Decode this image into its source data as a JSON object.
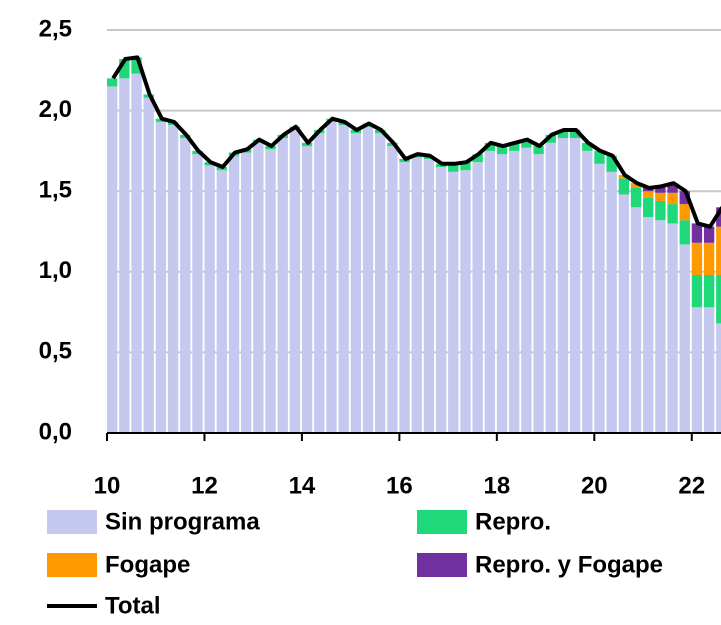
{
  "chart_data": {
    "type": "bar",
    "stacked": true,
    "x": [
      10.0,
      10.25,
      10.5,
      10.75,
      11.0,
      11.25,
      11.5,
      11.75,
      12.0,
      12.25,
      12.5,
      12.75,
      13.0,
      13.25,
      13.5,
      13.75,
      14.0,
      14.25,
      14.5,
      14.75,
      15.0,
      15.25,
      15.5,
      15.75,
      16.0,
      16.25,
      16.5,
      16.75,
      17.0,
      17.25,
      17.5,
      17.75,
      18.0,
      18.25,
      18.5,
      18.75,
      19.0,
      19.25,
      19.5,
      19.75,
      20.0,
      20.25,
      20.5,
      20.75,
      21.0,
      21.25,
      21.5,
      21.75,
      22.0,
      22.25,
      22.5
    ],
    "xlim": [
      10,
      22.6
    ],
    "xticks": [
      10,
      12,
      14,
      16,
      18,
      20,
      22
    ],
    "ylim": [
      0,
      2.5
    ],
    "yticks": [
      {
        "value": 0,
        "label": "0,0"
      },
      {
        "value": 0.5,
        "label": "0,5"
      },
      {
        "value": 1,
        "label": "1,0"
      },
      {
        "value": 1.5,
        "label": "1,5"
      },
      {
        "value": 2,
        "label": "2,0"
      },
      {
        "value": 2.5,
        "label": "2,5"
      }
    ],
    "grid": true,
    "series": [
      {
        "name": "Sin programa",
        "color": "#c5c8ef",
        "values": [
          2.15,
          2.2,
          2.23,
          2.08,
          1.93,
          1.91,
          1.83,
          1.73,
          1.66,
          1.63,
          1.72,
          1.74,
          1.8,
          1.76,
          1.83,
          1.88,
          1.78,
          1.86,
          1.93,
          1.91,
          1.86,
          1.9,
          1.86,
          1.78,
          1.68,
          1.71,
          1.7,
          1.65,
          1.62,
          1.63,
          1.68,
          1.75,
          1.73,
          1.75,
          1.77,
          1.73,
          1.8,
          1.83,
          1.83,
          1.75,
          1.67,
          1.62,
          1.48,
          1.4,
          1.34,
          1.32,
          1.3,
          1.17,
          0.78,
          0.78,
          0.68
        ]
      },
      {
        "name": "Repro.",
        "color": "#1fd87a",
        "values": [
          0.05,
          0.12,
          0.1,
          0.02,
          0.02,
          0.02,
          0.02,
          0.02,
          0.02,
          0.02,
          0.02,
          0.02,
          0.02,
          0.02,
          0.02,
          0.02,
          0.02,
          0.02,
          0.02,
          0.02,
          0.02,
          0.02,
          0.02,
          0.02,
          0.02,
          0.02,
          0.02,
          0.02,
          0.05,
          0.05,
          0.05,
          0.05,
          0.05,
          0.05,
          0.05,
          0.05,
          0.05,
          0.05,
          0.05,
          0.05,
          0.08,
          0.1,
          0.1,
          0.12,
          0.12,
          0.12,
          0.12,
          0.15,
          0.2,
          0.2,
          0.3
        ]
      },
      {
        "name": "Fogape",
        "color": "#ff9900",
        "values": [
          0,
          0,
          0,
          0,
          0,
          0,
          0,
          0,
          0,
          0,
          0,
          0,
          0,
          0,
          0,
          0,
          0,
          0,
          0,
          0,
          0,
          0,
          0,
          0,
          0,
          0,
          0,
          0,
          0,
          0,
          0,
          0,
          0,
          0,
          0,
          0,
          0,
          0,
          0,
          0,
          0,
          0,
          0.02,
          0.03,
          0.04,
          0.05,
          0.07,
          0.1,
          0.2,
          0.2,
          0.3
        ]
      },
      {
        "name": "Repro. y Fogape",
        "color": "#7030a0",
        "values": [
          0,
          0,
          0,
          0,
          0,
          0,
          0,
          0,
          0,
          0,
          0,
          0,
          0,
          0,
          0,
          0,
          0,
          0,
          0,
          0,
          0,
          0,
          0,
          0,
          0,
          0,
          0,
          0,
          0,
          0,
          0,
          0,
          0,
          0,
          0,
          0,
          0,
          0,
          0,
          0,
          0,
          0,
          0,
          0,
          0.02,
          0.04,
          0.06,
          0.08,
          0.12,
          0.1,
          0.12
        ]
      },
      {
        "name": "Total",
        "type": "line",
        "color": "#000000",
        "values": [
          2.2,
          2.32,
          2.33,
          2.1,
          1.95,
          1.93,
          1.85,
          1.75,
          1.68,
          1.65,
          1.74,
          1.76,
          1.82,
          1.78,
          1.85,
          1.9,
          1.8,
          1.88,
          1.95,
          1.93,
          1.88,
          1.92,
          1.88,
          1.8,
          1.7,
          1.73,
          1.72,
          1.67,
          1.67,
          1.68,
          1.73,
          1.8,
          1.78,
          1.8,
          1.82,
          1.78,
          1.85,
          1.88,
          1.88,
          1.8,
          1.75,
          1.72,
          1.6,
          1.55,
          1.52,
          1.53,
          1.55,
          1.5,
          1.3,
          1.28,
          1.4
        ]
      }
    ]
  }
}
